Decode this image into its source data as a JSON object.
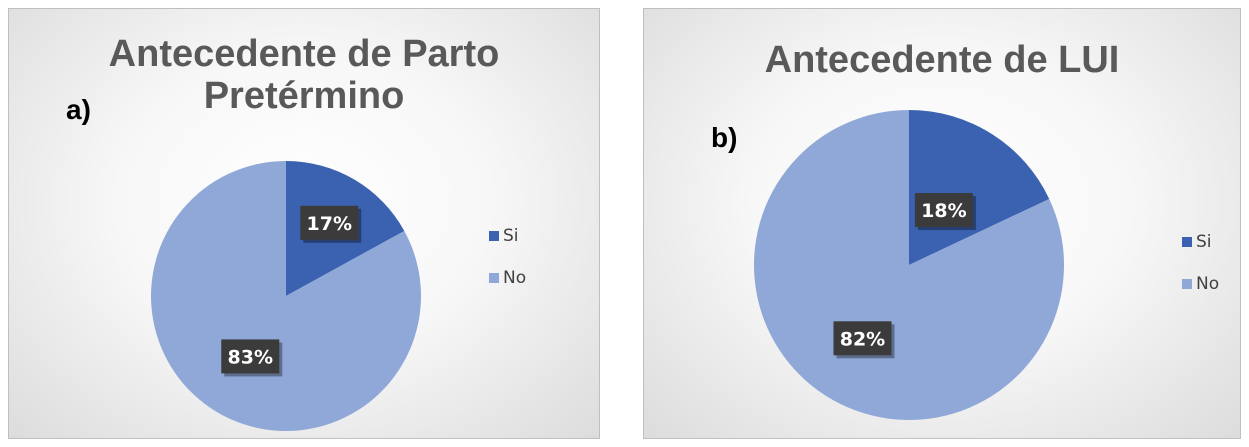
{
  "chart_data": [
    {
      "type": "pie",
      "panel_label": "a)",
      "title_lines": [
        "Antecedente de Parto",
        "Pretérmino"
      ],
      "categories": [
        "Si",
        "No"
      ],
      "values": [
        17,
        83
      ],
      "data_labels": [
        "17%",
        "83%"
      ],
      "colors": [
        "#3a62b0",
        "#8fa8d8"
      ],
      "legend": "right"
    },
    {
      "type": "pie",
      "panel_label": "b)",
      "title_lines": [
        "Antecedente de LUI"
      ],
      "categories": [
        "Si",
        "No"
      ],
      "values": [
        18,
        82
      ],
      "data_labels": [
        "18%",
        "82%"
      ],
      "colors": [
        "#3a62b0",
        "#8fa8d8"
      ],
      "legend": "right"
    }
  ]
}
